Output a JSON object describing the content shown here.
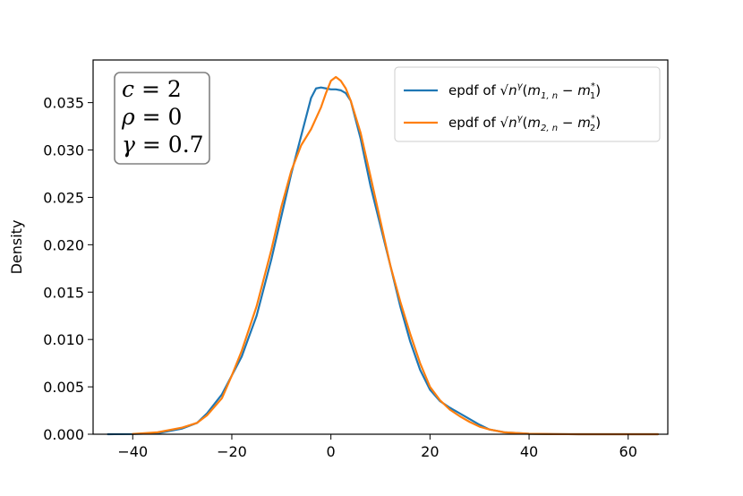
{
  "chart_data": {
    "type": "line",
    "title": "",
    "xlabel": "",
    "ylabel": "Density",
    "xlim": [
      -48,
      68
    ],
    "ylim": [
      0,
      0.0395
    ],
    "x_ticks": [
      -40,
      -20,
      0,
      20,
      40,
      60
    ],
    "x_tick_labels": [
      "−40",
      "−20",
      "0",
      "20",
      "40",
      "60"
    ],
    "y_ticks": [
      0.0,
      0.005,
      0.01,
      0.015,
      0.02,
      0.025,
      0.03,
      0.035
    ],
    "y_tick_labels": [
      "0.000",
      "0.005",
      "0.010",
      "0.015",
      "0.020",
      "0.025",
      "0.030",
      "0.035"
    ],
    "grid": false,
    "legend_position": "upper right",
    "annotation": {
      "lines": [
        {
          "sym": "c",
          "rest": " = 2"
        },
        {
          "sym": "ρ",
          "rest": " = 0"
        },
        {
          "sym": "γ",
          "rest": " = 0.7"
        }
      ]
    },
    "series": [
      {
        "name": "epdf of √nᵞ(m₁,ₙ − m₁*)",
        "legend_parts": {
          "prefix": "epdf of ",
          "n": "n",
          "exp": "γ",
          "m": "m",
          "sub": "1, n",
          "minus": " − ",
          "star_sub": "1",
          "star": "*"
        },
        "color": "#1f77b4",
        "x": [
          -45,
          -40,
          -35,
          -30,
          -27,
          -25,
          -22,
          -20,
          -18,
          -15,
          -12,
          -10,
          -8,
          -6,
          -4,
          -3,
          -2,
          -1,
          0,
          1,
          2,
          3,
          4,
          6,
          8,
          10,
          12,
          14,
          16,
          18,
          20,
          22,
          24,
          26,
          28,
          30,
          32,
          35,
          40,
          45,
          50,
          55,
          60,
          66
        ],
        "y": [
          0.0,
          2e-05,
          0.0001,
          0.0006,
          0.0012,
          0.0022,
          0.0042,
          0.0062,
          0.0082,
          0.0125,
          0.0185,
          0.023,
          0.0275,
          0.0315,
          0.0355,
          0.0365,
          0.0366,
          0.0365,
          0.0364,
          0.0364,
          0.0363,
          0.036,
          0.0352,
          0.0312,
          0.0262,
          0.022,
          0.0178,
          0.0135,
          0.0098,
          0.0068,
          0.0047,
          0.0035,
          0.0028,
          0.0022,
          0.0016,
          0.001,
          0.0005,
          0.0002,
          5e-05,
          1e-05,
          0.0,
          0.0,
          0.0,
          0.0
        ]
      },
      {
        "name": "epdf of √nᵞ(m₂,ₙ − m₂*)",
        "legend_parts": {
          "prefix": "epdf of ",
          "n": "n",
          "exp": "γ",
          "m": "m",
          "sub": "2, n",
          "minus": " − ",
          "star_sub": "2",
          "star": "*"
        },
        "color": "#ff7f0e",
        "x": [
          -40,
          -35,
          -30,
          -27,
          -25,
          -22,
          -20,
          -18,
          -15,
          -12,
          -10,
          -8,
          -6,
          -4,
          -2,
          -1,
          0,
          1,
          2,
          3,
          4,
          6,
          8,
          10,
          12,
          14,
          16,
          18,
          20,
          22,
          24,
          26,
          28,
          30,
          32,
          35,
          40,
          45,
          50,
          55,
          60,
          66
        ],
        "y": [
          3e-05,
          0.0002,
          0.0007,
          0.0012,
          0.002,
          0.0038,
          0.0062,
          0.0088,
          0.0135,
          0.0195,
          0.024,
          0.0278,
          0.0305,
          0.0322,
          0.0345,
          0.036,
          0.0373,
          0.0377,
          0.0373,
          0.0365,
          0.0352,
          0.0318,
          0.0272,
          0.0225,
          0.0178,
          0.014,
          0.0106,
          0.0075,
          0.005,
          0.0036,
          0.0026,
          0.0019,
          0.0013,
          0.0008,
          0.0005,
          0.0002,
          5e-05,
          1e-05,
          0.0,
          0.0,
          0.0,
          0.0
        ]
      }
    ]
  }
}
